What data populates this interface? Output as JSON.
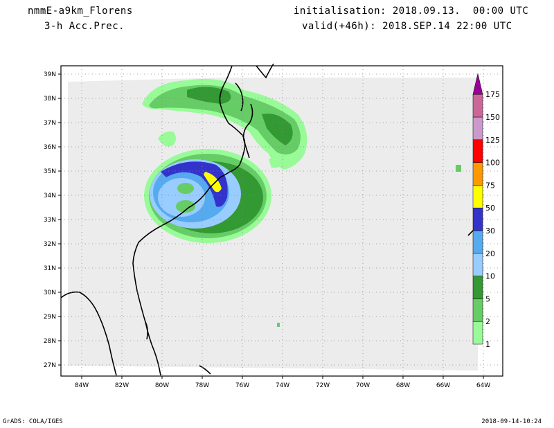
{
  "header": {
    "model": "nmmE-a9km_Florens",
    "field": "3-h Acc.Prec.",
    "initialisation": "initialisation: 2018.09.13.  00:00 UTC",
    "valid": "valid(+46h): 2018.SEP.14 22:00 UTC"
  },
  "footer": {
    "left": "GrADS: COLA/IGES",
    "right": "2018-09-14-10:24"
  },
  "map": {
    "lon_labels": [
      "84W",
      "82W",
      "80W",
      "78W",
      "76W",
      "74W",
      "72W",
      "70W",
      "68W",
      "66W",
      "64W"
    ],
    "lat_labels": [
      "39N",
      "38N",
      "37N",
      "36N",
      "35N",
      "34N",
      "33N",
      "32N",
      "31N",
      "30N",
      "29N",
      "28N",
      "27N"
    ]
  },
  "colorbar": {
    "labels": [
      "1",
      "2",
      "5",
      "10",
      "20",
      "30",
      "50",
      "75",
      "100",
      "125",
      "150",
      "175"
    ],
    "colors": [
      "#98fb98",
      "#66cc66",
      "#339933",
      "#99ccff",
      "#55aaf0",
      "#3333cc",
      "#ffff00",
      "#ff9900",
      "#ff0000",
      "#cc99cc",
      "#cc6699",
      "#990099"
    ]
  }
}
